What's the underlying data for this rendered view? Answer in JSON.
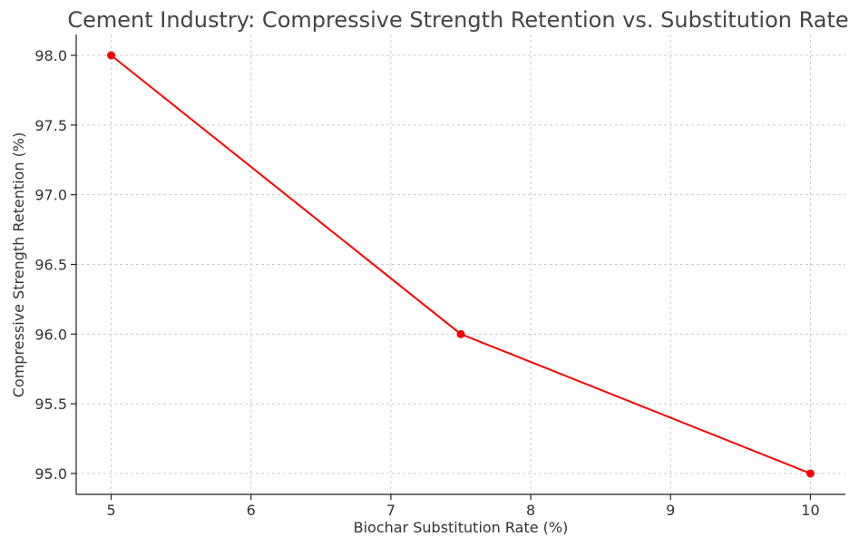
{
  "chart_data": {
    "type": "line",
    "title": "Cement Industry: Compressive Strength Retention vs. Substitution Rate",
    "xlabel": "Biochar Substitution Rate (%)",
    "ylabel": "Compressive Strength Retention (%)",
    "xlim": [
      4.75,
      10.25
    ],
    "ylim": [
      94.85,
      98.15
    ],
    "xticks": [
      "5",
      "6",
      "7",
      "8",
      "9",
      "10"
    ],
    "yticks": [
      "95.0",
      "95.5",
      "96.0",
      "96.5",
      "97.0",
      "97.5",
      "98.0"
    ],
    "grid": true,
    "series": [
      {
        "color": "#ff0000",
        "marker": "circle",
        "x": [
          5,
          7.5,
          10
        ],
        "y": [
          98.0,
          96.0,
          95.0
        ]
      }
    ]
  }
}
